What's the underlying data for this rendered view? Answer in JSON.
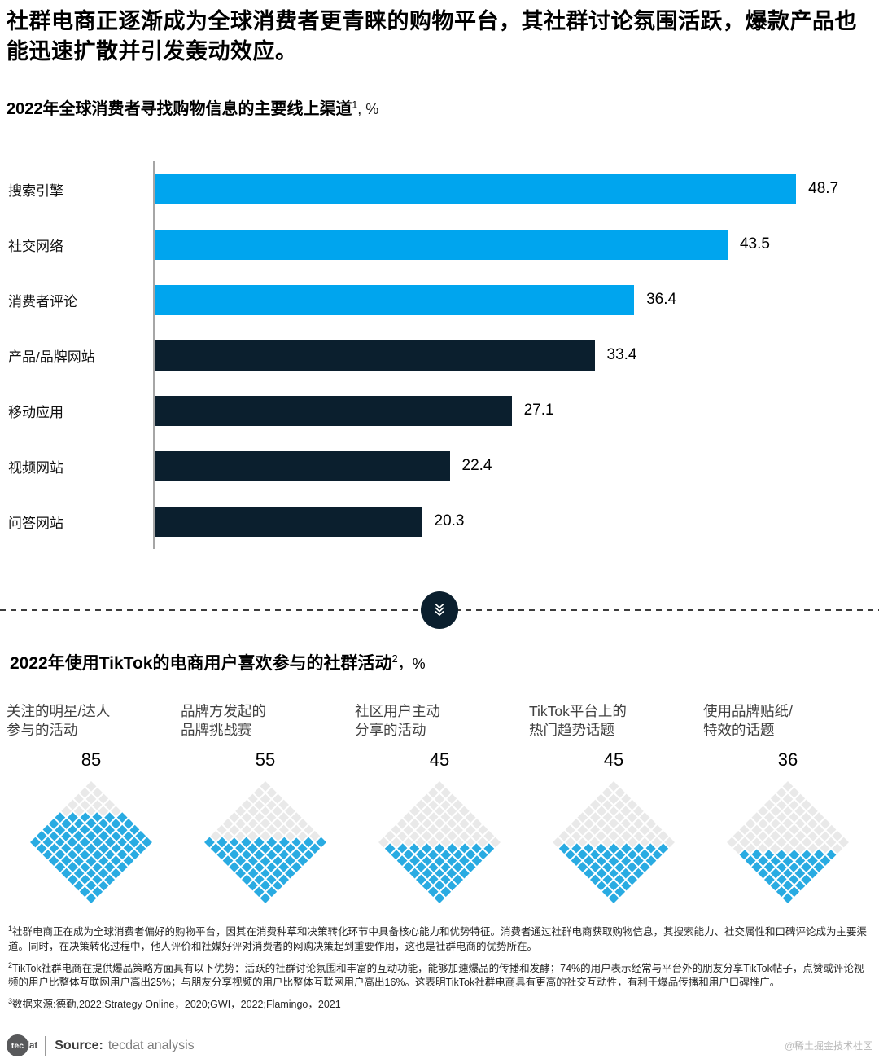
{
  "headline": "社群电商正逐渐成为全球消费者更青睐的购物平台，其社群讨论氛围活跃，爆款产品也能迅速扩散并引发轰动效应。",
  "section1": {
    "title_main": "2022年全球消费者寻找购物信息的主要线上渠道",
    "title_sup": "1",
    "title_unit": ", %"
  },
  "section2": {
    "title_main": "2022年使用TikTok的电商用户喜欢参与的社群活动",
    "title_sup": "2",
    "title_unit": "，%"
  },
  "divider": {
    "icon": "triple-chevron-down-icon",
    "circle_color": "#0b1f2e"
  },
  "chart_data": [
    {
      "type": "bar",
      "orientation": "horizontal",
      "title": "2022年全球消费者寻找购物信息的主要线上渠道, %",
      "categories": [
        "搜索引擎",
        "社交网络",
        "消费者评论",
        "产品/品牌网站",
        "移动应用",
        "视频网站",
        "问答网站"
      ],
      "values": [
        48.7,
        43.5,
        36.4,
        33.4,
        27.1,
        22.4,
        20.3
      ],
      "bar_colors": [
        "#00a5ee",
        "#00a5ee",
        "#00a5ee",
        "#0b1f2e",
        "#0b1f2e",
        "#0b1f2e",
        "#0b1f2e"
      ],
      "value_decimals": 1,
      "xlim": [
        0,
        54.5
      ],
      "grid": false,
      "value_labels": true,
      "axis_line_color": "#a6a6a6"
    },
    {
      "type": "waffle-diamond",
      "title": "2022年使用TikTok的电商用户喜欢参与的社群活动, %",
      "categories": [
        "关注的明星/达人参与的活动",
        "品牌方发起的品牌挑战赛",
        "社区用户主动分享的活动",
        "TikTok平台上的热门趋势话题",
        "使用品牌贴纸/特效的话题"
      ],
      "categories_lines": [
        [
          "关注的明星/达人",
          "参与的活动"
        ],
        [
          "品牌方发起的",
          "品牌挑战赛"
        ],
        [
          "社区用户主动",
          "分享的活动"
        ],
        [
          "TikTok平台上的",
          "热门趋势话题"
        ],
        [
          "使用品牌贴纸/",
          "特效的话题"
        ]
      ],
      "values": [
        85,
        55,
        45,
        45,
        36
      ],
      "total_cells": 100,
      "grid_shape": "10x10 rotated 45deg, filled bottom-up",
      "fill_color": "#29abe2",
      "empty_color": "#e9e9e9"
    }
  ],
  "footnotes": [
    {
      "sup": "1",
      "text": "社群电商正在成为全球消费者偏好的购物平台，因其在消费种草和决策转化环节中具备核心能力和优势特征。消费者通过社群电商获取购物信息，其搜索能力、社交属性和口碑评论成为主要渠道。同时，在决策转化过程中，他人评价和社媒好评对消费者的网购决策起到重要作用，这也是社群电商的优势所在。"
    },
    {
      "sup": "2",
      "text": "TikTok社群电商在提供爆品策略方面具有以下优势：活跃的社群讨论氛围和丰富的互动功能，能够加速爆品的传播和发酵；74%的用户表示经常与平台外的朋友分享TikTok帖子，点赞或评论视频的用户比整体互联网用户高出25%；与朋友分享视频的用户比整体互联网用户高出16%。这表明TikTok社群电商具有更高的社交互动性，有利于爆品传播和用户口碑推广。"
    },
    {
      "sup": "3",
      "text": "数据来源:德勤,2022;Strategy Online，2020;GWI，2022;Flamingo，2021"
    }
  ],
  "footer": {
    "logo_circle_text": "tec",
    "logo_suffix_text": "dat",
    "source_label": "Source:",
    "source_text": "tecdat analysis",
    "watermark": "@稀土掘金技术社区"
  }
}
